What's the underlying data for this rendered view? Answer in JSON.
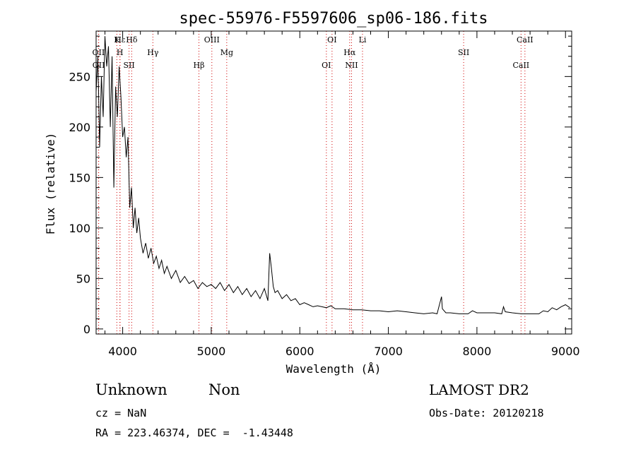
{
  "chart_data": {
    "type": "line",
    "title": "spec-55976-F5597606_sp06-186.fits",
    "xlabel": "Wavelength (Å)",
    "ylabel": "Flux (relative)",
    "xlim": [
      3700,
      9070
    ],
    "ylim": [
      -5,
      295
    ],
    "xticks": [
      4000,
      5000,
      6000,
      7000,
      8000,
      9000
    ],
    "yticks": [
      0,
      50,
      100,
      150,
      200,
      250
    ],
    "grid": false,
    "legend": "none",
    "series": [
      {
        "color": "#000000",
        "x": [
          3700,
          3720,
          3740,
          3760,
          3780,
          3800,
          3820,
          3840,
          3860,
          3880,
          3900,
          3920,
          3940,
          3960,
          3980,
          4000,
          4020,
          4040,
          4060,
          4080,
          4100,
          4120,
          4140,
          4160,
          4180,
          4200,
          4230,
          4260,
          4290,
          4320,
          4350,
          4380,
          4410,
          4440,
          4470,
          4500,
          4550,
          4600,
          4650,
          4700,
          4750,
          4800,
          4850,
          4900,
          4950,
          5000,
          5050,
          5100,
          5150,
          5200,
          5250,
          5300,
          5350,
          5400,
          5450,
          5500,
          5550,
          5600,
          5640,
          5660,
          5680,
          5700,
          5720,
          5750,
          5800,
          5850,
          5900,
          5950,
          6000,
          6050,
          6100,
          6150,
          6200,
          6250,
          6300,
          6350,
          6400,
          6500,
          6600,
          6700,
          6800,
          6900,
          7000,
          7100,
          7200,
          7300,
          7400,
          7500,
          7550,
          7600,
          7610,
          7650,
          7700,
          7800,
          7900,
          7950,
          8000,
          8100,
          8200,
          8280,
          8300,
          8320,
          8400,
          8500,
          8600,
          8700,
          8750,
          8800,
          8850,
          8900,
          8950,
          9000,
          9050
        ],
        "y": [
          235,
          270,
          180,
          250,
          210,
          290,
          260,
          280,
          200,
          270,
          140,
          240,
          210,
          260,
          230,
          190,
          200,
          170,
          190,
          120,
          140,
          100,
          120,
          95,
          110,
          90,
          75,
          85,
          70,
          80,
          65,
          72,
          60,
          68,
          55,
          62,
          50,
          58,
          46,
          52,
          45,
          48,
          40,
          46,
          42,
          44,
          40,
          46,
          38,
          44,
          36,
          42,
          34,
          40,
          32,
          38,
          30,
          40,
          28,
          75,
          60,
          42,
          36,
          38,
          30,
          34,
          28,
          30,
          24,
          26,
          24,
          22,
          23,
          22,
          21,
          23,
          20,
          20,
          19,
          19,
          18,
          18,
          17,
          18,
          17,
          16,
          15,
          16,
          15,
          32,
          20,
          16,
          16,
          15,
          15,
          18,
          16,
          16,
          16,
          15,
          22,
          17,
          16,
          15,
          15,
          15,
          18,
          17,
          21,
          19,
          22,
          24,
          21
        ]
      }
    ],
    "line_marks": [
      {
        "label": "Hε",
        "wavelength": 3970
      },
      {
        "label": "OII",
        "wavelength": 3727
      },
      {
        "label": "OII",
        "wavelength": 3729
      },
      {
        "label": "K",
        "wavelength": 3934
      },
      {
        "label": "H",
        "wavelength": 3969
      },
      {
        "label": "SII",
        "wavelength": 4072
      },
      {
        "label": "Hδ",
        "wavelength": 4102
      },
      {
        "label": "Hγ",
        "wavelength": 4341
      },
      {
        "label": "Hβ",
        "wavelength": 4861
      },
      {
        "label": "OIII",
        "wavelength": 5007
      },
      {
        "label": "Mg",
        "wavelength": 5175
      },
      {
        "label": "OI",
        "wavelength": 6300
      },
      {
        "label": "OI",
        "wavelength": 6364
      },
      {
        "label": "Hα",
        "wavelength": 6563
      },
      {
        "label": "NII",
        "wavelength": 6584
      },
      {
        "label": "Li",
        "wavelength": 6708
      },
      {
        "label": "SII",
        "wavelength": 7850
      },
      {
        "label": "CaII",
        "wavelength": 8498
      },
      {
        "label": "CaII",
        "wavelength": 8542
      }
    ]
  },
  "footer": {
    "class_label": "Unknown",
    "subclass_label": "Non",
    "survey_label": "LAMOST DR2",
    "cz_label": "cz = NaN",
    "obs_date_label": "Obs-Date: 20120218",
    "coords_label": "RA = 223.46374, DEC =  -1.43448"
  }
}
